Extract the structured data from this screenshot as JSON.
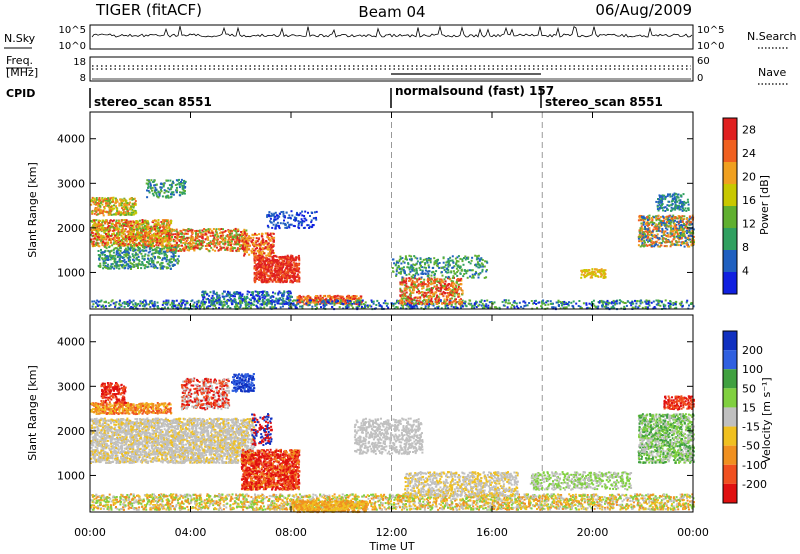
{
  "header": {
    "title_left": "TIGER (fitACF)",
    "title_center": "Beam 04",
    "title_right": "06/Aug/2009"
  },
  "left_labels": {
    "nsky": "N.Sky",
    "freq_line1": "Freq.",
    "freq_line2": "[MHz]",
    "cpid": "CPID"
  },
  "right_labels": {
    "nsearch": "N.Search",
    "nave": "Nave"
  },
  "noise_panel": {
    "left_ticks": [
      "10^5",
      "10^0"
    ],
    "right_ticks": [
      "10^5",
      "10^0"
    ]
  },
  "freq_panel": {
    "left_ticks": [
      "18",
      "8"
    ],
    "right_ticks": [
      "60",
      "0"
    ]
  },
  "cpid_panel": {
    "segments": [
      {
        "label": "stereo_scan 8551",
        "start_hour": 0
      },
      {
        "label": "normalsound (fast) 157",
        "start_hour": 12
      },
      {
        "label": "stereo_scan 8551",
        "start_hour": 18
      }
    ]
  },
  "chart_data": [
    {
      "type": "heatmap",
      "name": "power",
      "ylabel": "Slant Range [km]",
      "xlim_hours": [
        0,
        24
      ],
      "ylim": [
        180,
        4600
      ],
      "yticks": [
        "1000",
        "2000",
        "3000",
        "4000"
      ],
      "scale_label": "Power [dB]",
      "scale_ticks": [
        "4",
        "8",
        "12",
        "16",
        "20",
        "24",
        "28"
      ],
      "scale_range": [
        0,
        30
      ],
      "scale_colors": [
        "#1020e0",
        "#2060c0",
        "#30a060",
        "#60b030",
        "#c8c800",
        "#f0a020",
        "#f06020",
        "#e02020"
      ],
      "dashed_lines_hours": [
        12,
        18
      ]
    },
    {
      "type": "heatmap",
      "name": "velocity",
      "ylabel": "Slant Range [km]",
      "xlim_hours": [
        0,
        24
      ],
      "ylim": [
        180,
        4600
      ],
      "yticks": [
        "1000",
        "2000",
        "3000",
        "4000"
      ],
      "scale_label": "Velocity [m s⁻¹]",
      "scale_ticks": [
        "200",
        "100",
        "50",
        "15",
        "-15",
        "-50",
        "-100",
        "-200"
      ],
      "scale_colors": [
        "#1030c0",
        "#3060e0",
        "#40a040",
        "#80d040",
        "#c0c0c0",
        "#f0c020",
        "#f09020",
        "#f05020",
        "#e01010"
      ],
      "dashed_lines_hours": [
        12,
        18
      ]
    }
  ],
  "x_axis": {
    "ticks": [
      "00:00",
      "04:00",
      "08:00",
      "12:00",
      "16:00",
      "20:00",
      "00:00"
    ],
    "label": "Time UT"
  }
}
